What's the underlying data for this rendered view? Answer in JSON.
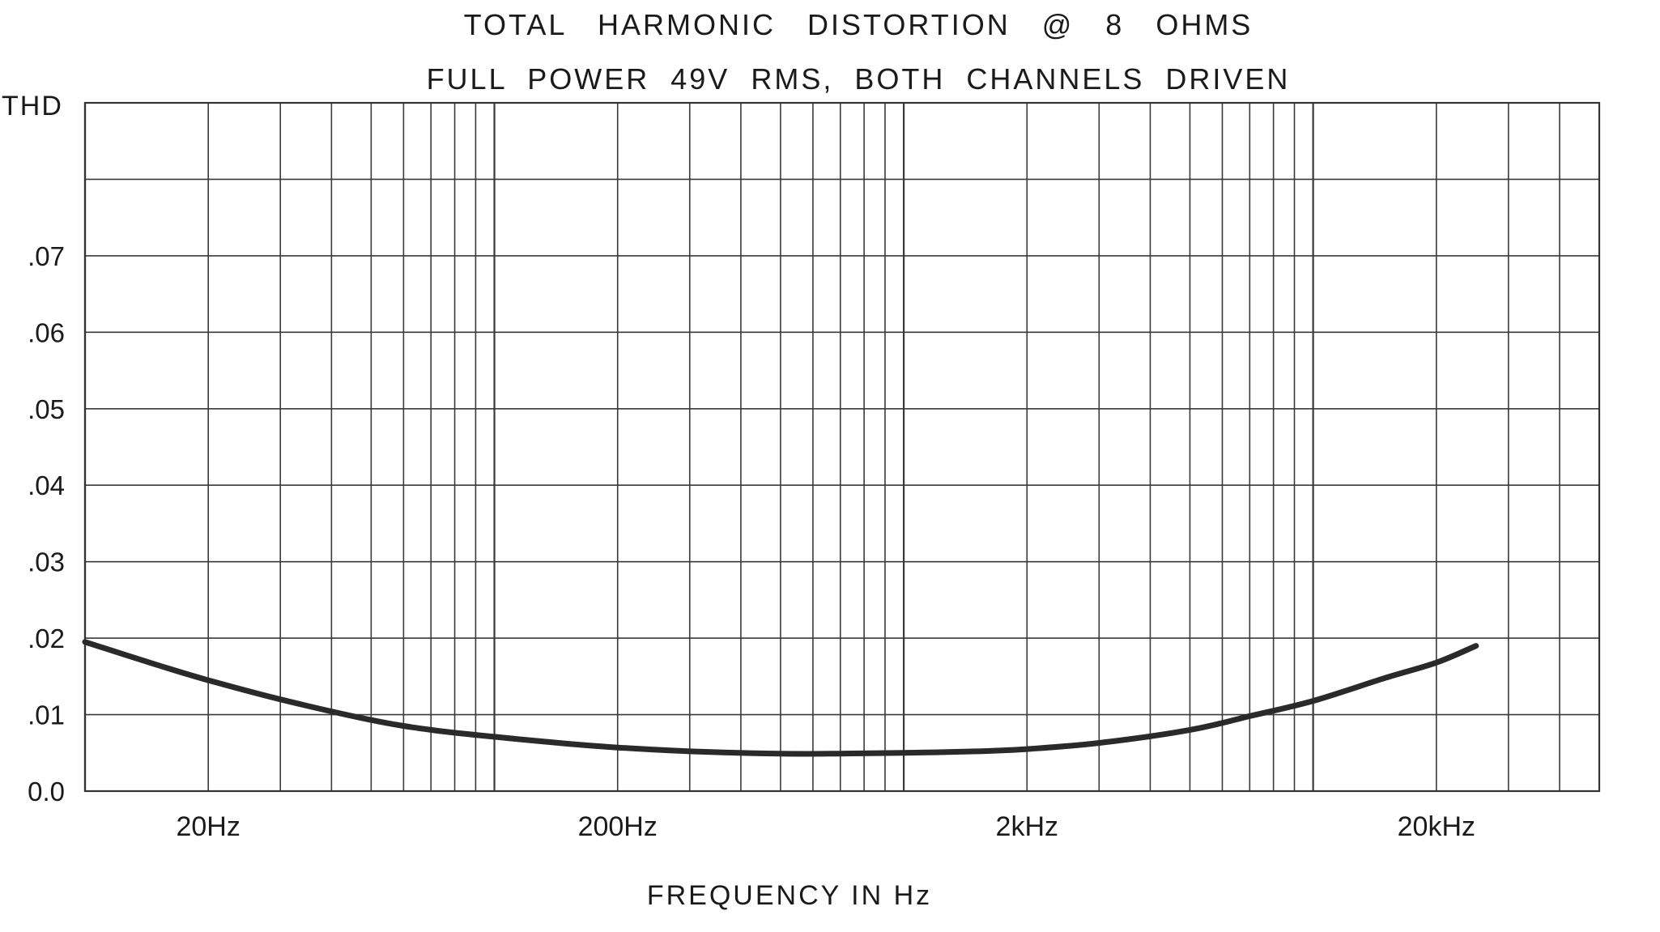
{
  "chart_data": {
    "type": "line",
    "title": "TOTAL   HARMONIC   DISTORTION   @   8   OHMS",
    "subtitle": "FULL  POWER  49V  RMS,  BOTH  CHANNELS  DRIVEN",
    "xlabel": "FREQUENCY IN Hz",
    "ylabel": "THD",
    "x_scale": "log",
    "xlim": [
      10,
      50000
    ],
    "ylim": [
      0,
      0.09
    ],
    "x_ticks": [
      {
        "value": 20,
        "label": "20Hz"
      },
      {
        "value": 200,
        "label": "200Hz"
      },
      {
        "value": 2000,
        "label": "2kHz"
      },
      {
        "value": 20000,
        "label": "20kHz"
      }
    ],
    "y_ticks": [
      {
        "value": 0,
        "label": "0.0"
      },
      {
        "value": 0.01,
        "label": ".01"
      },
      {
        "value": 0.02,
        "label": ".02"
      },
      {
        "value": 0.03,
        "label": ".03"
      },
      {
        "value": 0.04,
        "label": ".04"
      },
      {
        "value": 0.05,
        "label": ".05"
      },
      {
        "value": 0.06,
        "label": ".06"
      },
      {
        "value": 0.07,
        "label": ".07"
      }
    ],
    "grid": true,
    "series": [
      {
        "color": "#2a2a2a",
        "x": [
          10,
          15,
          20,
          30,
          50,
          70,
          100,
          150,
          200,
          300,
          500,
          700,
          1000,
          1500,
          2000,
          3000,
          5000,
          7000,
          10000,
          15000,
          20000,
          25000
        ],
        "y": [
          0.0195,
          0.0165,
          0.0145,
          0.012,
          0.0093,
          0.008,
          0.0071,
          0.0062,
          0.0057,
          0.0052,
          0.0049,
          0.0049,
          0.005,
          0.0052,
          0.0055,
          0.0063,
          0.008,
          0.0098,
          0.0118,
          0.0148,
          0.0168,
          0.019
        ]
      }
    ]
  }
}
